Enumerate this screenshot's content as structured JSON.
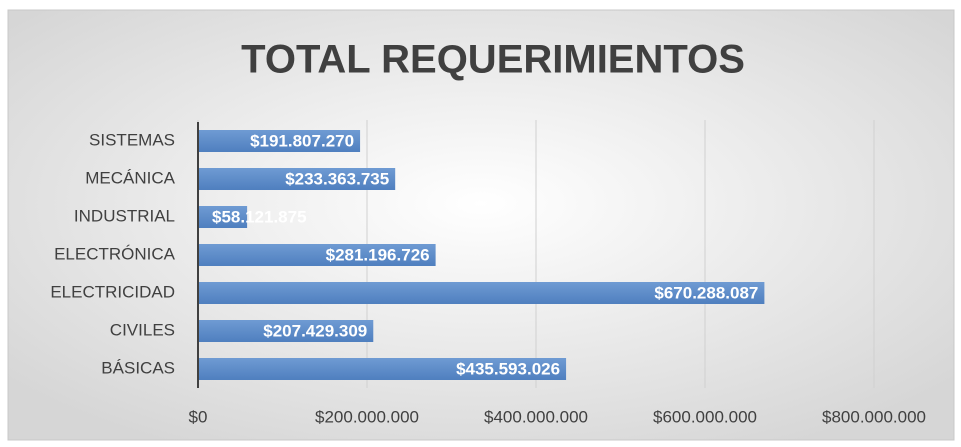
{
  "chart_data": {
    "type": "hbar",
    "title": "TOTAL REQUERIMIENTOS",
    "categories": [
      "SISTEMAS",
      "MECÁNICA",
      "INDUSTRIAL",
      "ELECTRÓNICA",
      "ELECTRICIDAD",
      "CIVILES",
      "BÁSICAS"
    ],
    "values": [
      191807270,
      233363735,
      58121875,
      281196726,
      670288087,
      207429309,
      435593026
    ],
    "value_labels": [
      "$191.807.270",
      "$233.363.735",
      "$58.121.875",
      "$281.196.726",
      "$670.288.087",
      "$207.429.309",
      "$435.593.026"
    ],
    "color": "#5b8bc8",
    "xlim": [
      0,
      800000000
    ],
    "xticks": [
      {
        "value": 0,
        "label": "$0"
      },
      {
        "value": 200000000,
        "label": "$200.000.000"
      },
      {
        "value": 400000000,
        "label": "$400.000.000"
      },
      {
        "value": 600000000,
        "label": "$600.000.000"
      },
      {
        "value": 800000000,
        "label": "$800.000.000"
      }
    ],
    "grid": true
  }
}
